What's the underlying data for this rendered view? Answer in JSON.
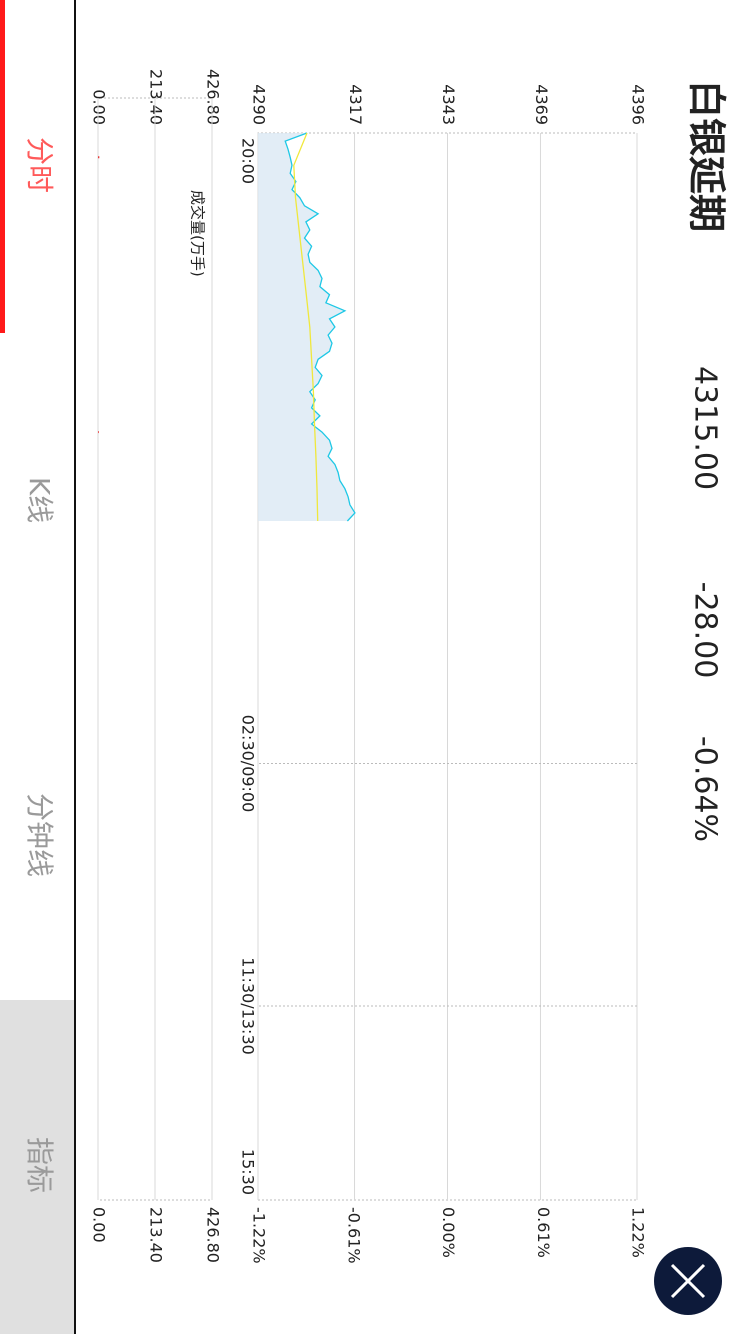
{
  "header": {
    "title": "白银延期",
    "price": "4315.00",
    "change": "-28.00",
    "change_pct": "-0.64%"
  },
  "tabs": [
    "分时",
    "K线",
    "分钟线",
    "指标"
  ],
  "chart_data": [
    {
      "type": "line",
      "xlim": [
        0,
        660
      ],
      "xticks": [
        {
          "value": 0,
          "label": "20:00"
        },
        {
          "value": 390,
          "label": "02:30/09:00"
        },
        {
          "value": 540,
          "label": "11:30/13:30"
        },
        {
          "value": 660,
          "label": "15:30"
        }
      ],
      "ylim": [
        4290,
        4396
      ],
      "yticks": [
        4290,
        4317,
        4343,
        4369,
        4396
      ],
      "y2lim": [
        -1.22,
        1.22
      ],
      "y2ticks": [
        {
          "value": -1.22,
          "label": "-1.22%"
        },
        {
          "value": -0.61,
          "label": "-0.61%"
        },
        {
          "value": 0,
          "label": "0.00%"
        },
        {
          "value": 0.61,
          "label": "0.61%"
        },
        {
          "value": 1.22,
          "label": "1.22%"
        }
      ],
      "grid": true,
      "series": [
        {
          "color": "#1ec8e6",
          "fill": "#dbe9f4",
          "x": [
            0,
            5,
            10,
            15,
            20,
            25,
            30,
            35,
            40,
            45,
            50,
            55,
            60,
            65,
            70,
            75,
            80,
            85,
            90,
            95,
            100,
            105,
            110,
            115,
            120,
            125,
            130,
            135,
            140,
            145,
            150,
            155,
            160,
            165,
            170,
            175,
            180,
            185,
            190,
            195,
            200,
            205,
            210,
            215,
            220,
            225,
            230,
            235,
            240
          ],
          "values": [
            4303.7,
            4297.6,
            4298.4,
            4299,
            4299.5,
            4299,
            4300.6,
            4299.5,
            4301.7,
            4303,
            4306.8,
            4303.4,
            4304.5,
            4303,
            4305,
            4304,
            4304.5,
            4306.8,
            4307.9,
            4307.3,
            4310,
            4309,
            4314.3,
            4310,
            4311.5,
            4309.6,
            4310.7,
            4310,
            4306.8,
            4306,
            4307.9,
            4306.8,
            4304.5,
            4306,
            4305,
            4307.3,
            4305,
            4307.9,
            4310,
            4310.7,
            4309.6,
            4311.5,
            4312.4,
            4312.9,
            4314.3,
            4315.2,
            4315.7,
            4317.1,
            4315
          ]
        },
        {
          "color": "#f0e83c",
          "x": [
            0,
            20,
            40,
            60,
            80,
            100,
            120,
            140,
            160,
            180,
            200,
            220,
            240
          ],
          "values": [
            4303.7,
            4300,
            4300.5,
            4301.5,
            4302.5,
            4303.5,
            4304.5,
            4305,
            4305.5,
            4305.8,
            4306.2,
            4306.5,
            4306.7
          ]
        }
      ]
    },
    {
      "type": "bar",
      "title": "成交量(万手)",
      "xlim": [
        0,
        660
      ],
      "ylim": [
        0,
        426.8
      ],
      "yticks": [
        {
          "value": 0,
          "label": "0.00"
        },
        {
          "value": 213.4,
          "label": "213.40"
        },
        {
          "value": 426.8,
          "label": "426.80"
        }
      ],
      "y2ticks": [
        {
          "value": 0,
          "label": "0.00"
        },
        {
          "value": 213.4,
          "label": "213.40"
        },
        {
          "value": 426.8,
          "label": "426.80"
        }
      ],
      "grid": true,
      "color": "#e83a3a",
      "x": [
        15,
        185
      ],
      "values": [
        5,
        3
      ]
    }
  ]
}
